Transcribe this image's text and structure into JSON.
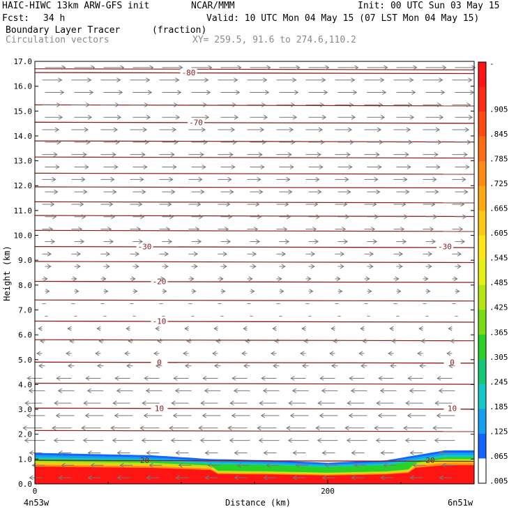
{
  "header": {
    "model": "HAIC-HIWC 13km ARW-GFS init",
    "org": "NCAR/MMM",
    "init": "Init: 00 UTC Sun 03 May 15",
    "fcst_label": "Fcst:",
    "fcst_value": "34 h",
    "valid": "Valid: 10 UTC Mon 04 May 15 (07 LST Mon 04 May 15)",
    "field": "Boundary Layer Tracer",
    "units": "(fraction)",
    "overlay": "Circulation vectors",
    "xy": "XY= 259.5, 91.6 to 274.6,110.2"
  },
  "colors": {
    "contour": "#8b1a1a",
    "vector": "#777777",
    "tracer_high": "#ff1a1a"
  },
  "chart_data": {
    "type": "heatmap",
    "title": "Boundary Layer Tracer",
    "ylabel": "Height (km)",
    "xlabel": "Distance (km)",
    "ylim": [
      0,
      17
    ],
    "xlim": [
      0,
      300
    ],
    "y_ticks": [
      "0.0",
      "1.0",
      "2.0",
      "3.0",
      "4.0",
      "5.0",
      "6.0",
      "7.0",
      "8.0",
      "9.0",
      "10.0",
      "11.0",
      "12.0",
      "13.0",
      "14.0",
      "15.0",
      "16.0",
      "17.0"
    ],
    "x_ticks": [
      {
        "value": 0,
        "label": "0"
      },
      {
        "value": 200,
        "label": "200"
      }
    ],
    "x_end_labels": {
      "left": "4n53w",
      "right": "6n51w"
    },
    "colorbar": {
      "labels": [
        "-",
        ".905",
        ".845",
        ".785",
        ".725",
        ".665",
        ".605",
        ".545",
        ".485",
        ".425",
        ".365",
        ".305",
        ".245",
        ".185",
        ".125",
        ".065",
        ".005"
      ],
      "colors": [
        "#ff1414",
        "#ff2a14",
        "#ff4a14",
        "#ff6a14",
        "#ff8a14",
        "#ffaa14",
        "#ffc814",
        "#ffe614",
        "#e6f014",
        "#b4e614",
        "#78dc14",
        "#28d228",
        "#14c878",
        "#14c8c8",
        "#14a0f0",
        "#1464ff",
        "#ffffff"
      ]
    },
    "temperature_contours": [
      {
        "label": "-80",
        "height_km": 16.55
      },
      {
        "label": "-70",
        "height_km": 14.55
      },
      {
        "label": "-30",
        "height_km": 9.55
      },
      {
        "label": "-20",
        "height_km": 8.15
      },
      {
        "label": "-10",
        "height_km": 6.55
      },
      {
        "label": "0",
        "height_km": 4.9
      },
      {
        "label": "10",
        "height_km": 3.05
      },
      {
        "label": "20",
        "height_km": 0.95
      }
    ],
    "tracer_top_km": {
      "x": [
        0,
        40,
        80,
        120,
        160,
        200,
        240,
        280,
        300
      ],
      "y": [
        1.25,
        1.2,
        1.15,
        1.0,
        0.95,
        0.85,
        0.95,
        1.35,
        1.35
      ]
    },
    "wind_regimes": [
      {
        "from_km": 0,
        "to_km": 4.5,
        "direction": "westward",
        "speed": "strong"
      },
      {
        "from_km": 4.5,
        "to_km": 9,
        "direction": "weak",
        "speed": "light"
      },
      {
        "from_km": 9,
        "to_km": 17,
        "direction": "eastward",
        "speed": "strong"
      }
    ]
  }
}
